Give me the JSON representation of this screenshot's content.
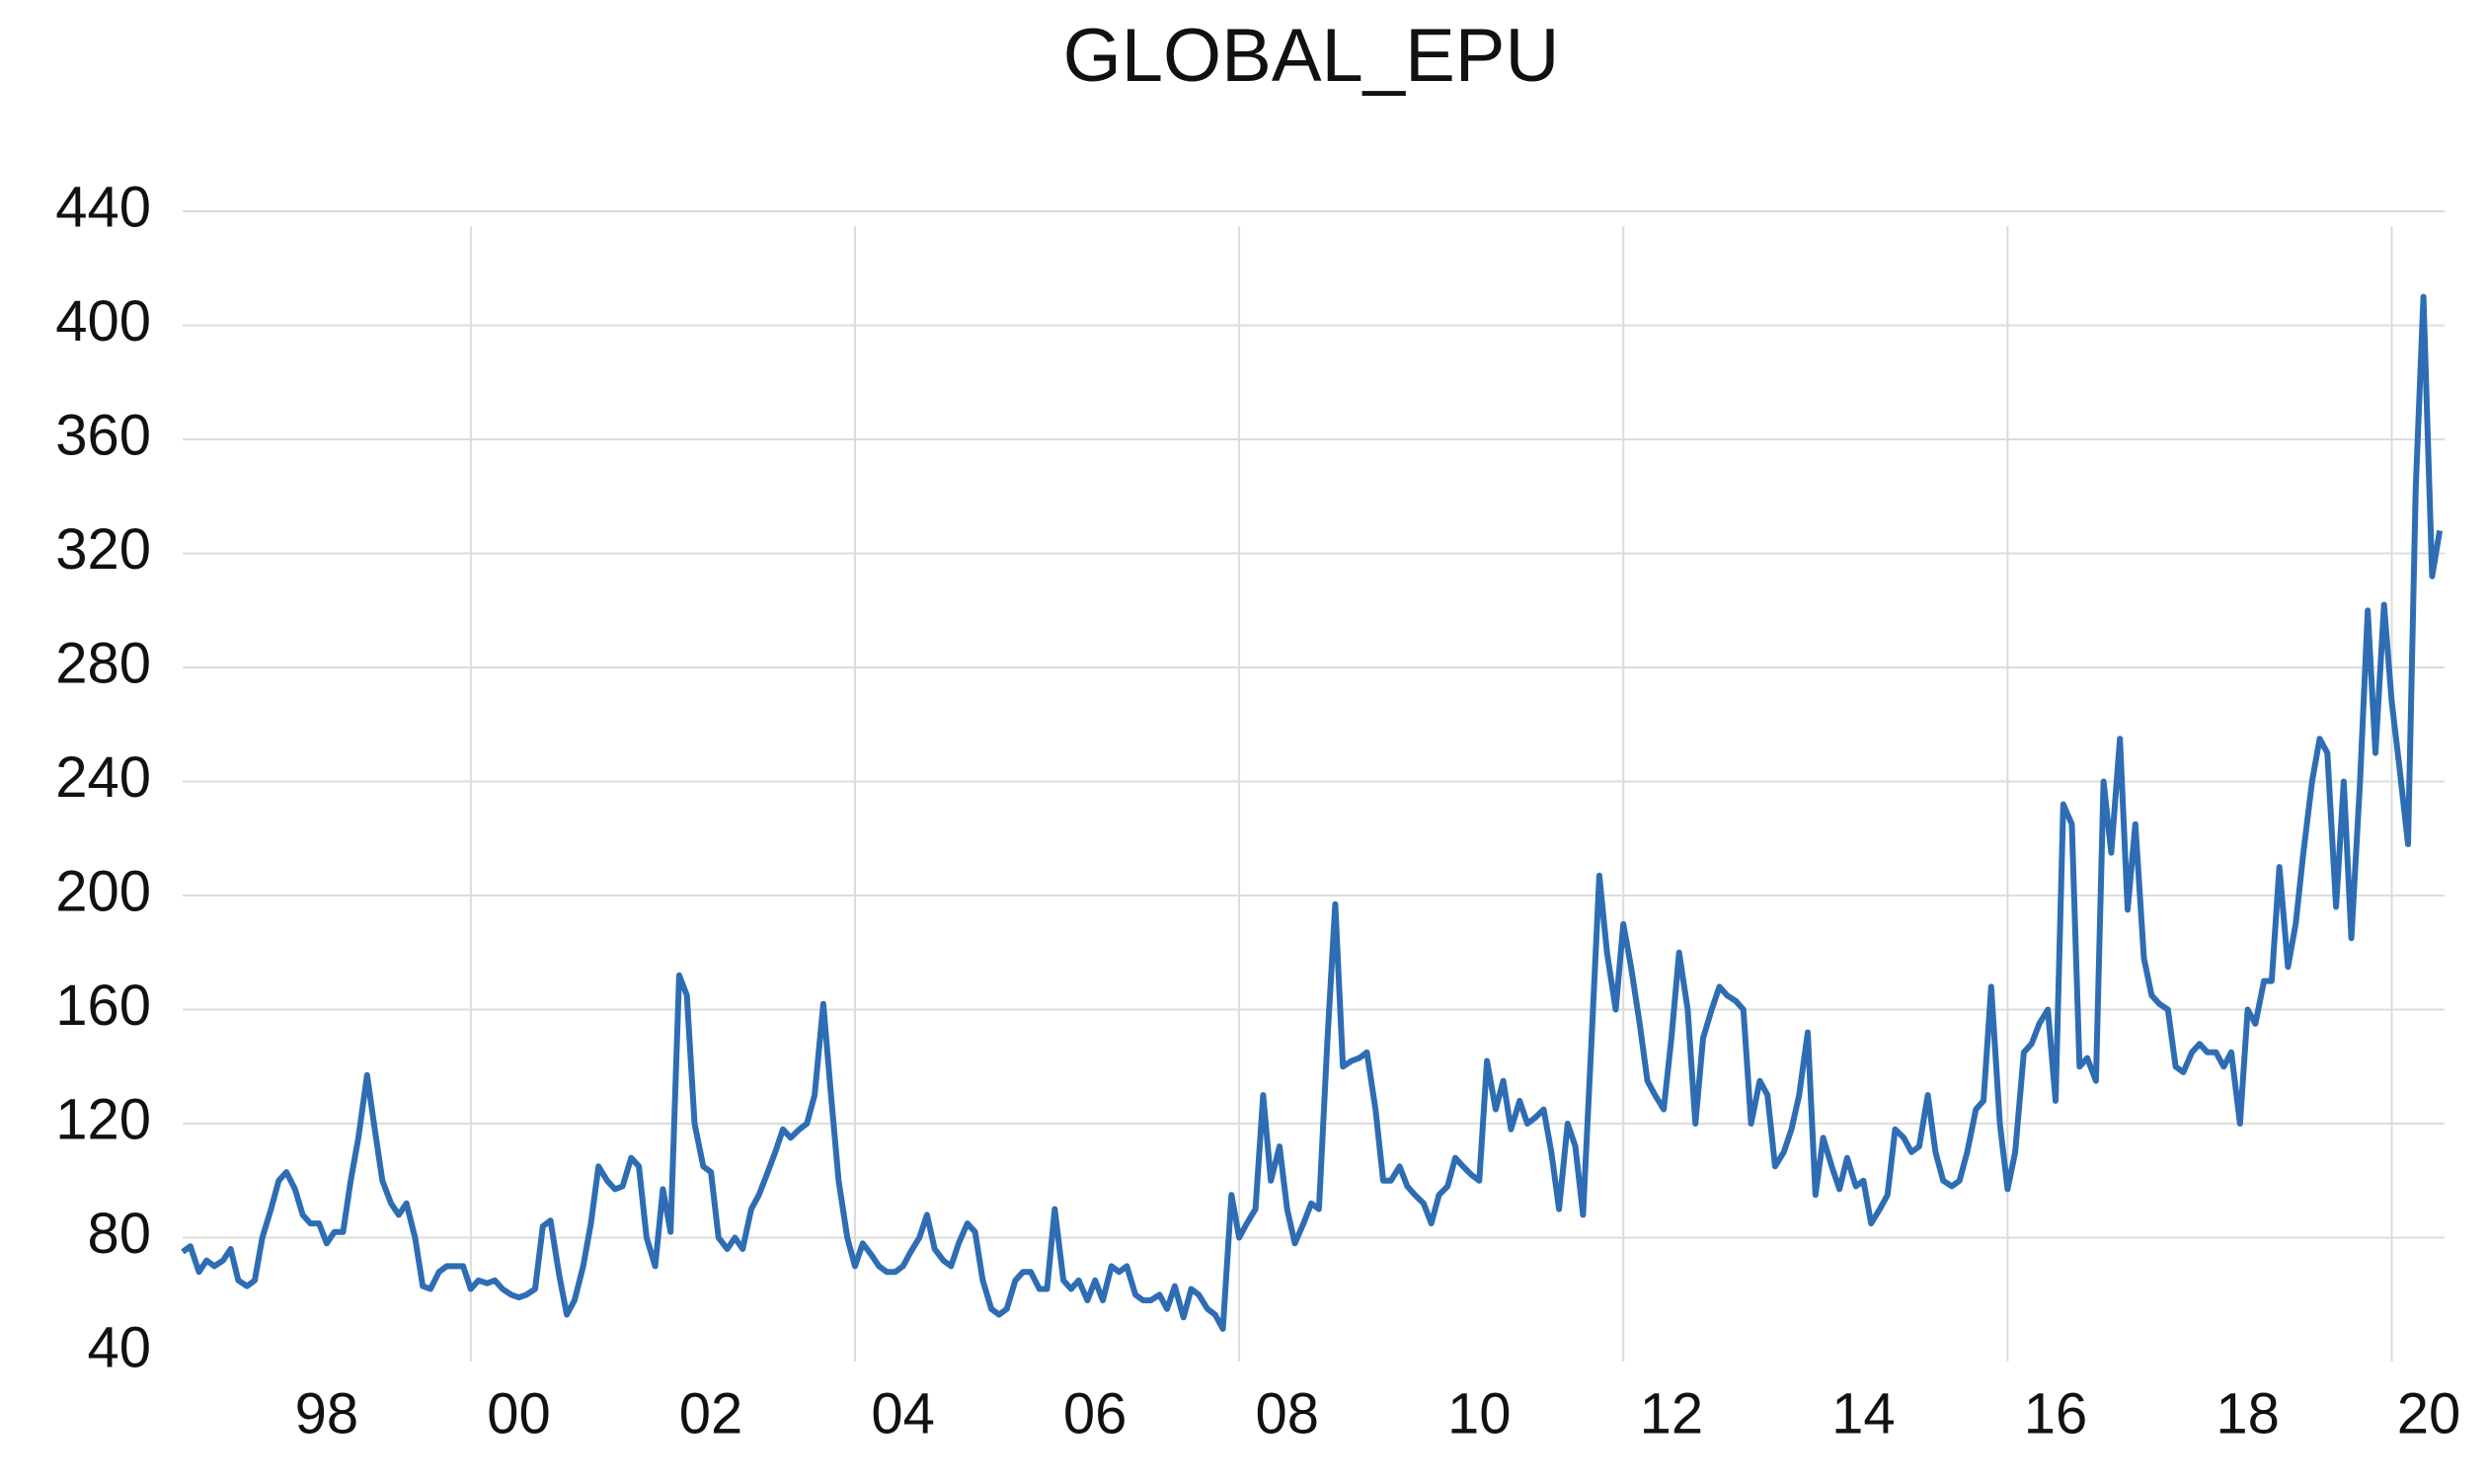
{
  "chart_data": {
    "type": "line",
    "title": "GLOBAL_EPU",
    "xlim": [
      1997,
      2020.55
    ],
    "xticks": [
      {
        "value": 1998.5,
        "label": "98"
      },
      {
        "value": 2000.5,
        "label": "00"
      },
      {
        "value": 2002.5,
        "label": "02"
      },
      {
        "value": 2004.5,
        "label": "04"
      },
      {
        "value": 2006.5,
        "label": "06"
      },
      {
        "value": 2008.5,
        "label": "08"
      },
      {
        "value": 2010.5,
        "label": "10"
      },
      {
        "value": 2012.5,
        "label": "12"
      },
      {
        "value": 2014.5,
        "label": "14"
      },
      {
        "value": 2016.5,
        "label": "16"
      },
      {
        "value": 2018.5,
        "label": "18"
      },
      {
        "value": 2020.5,
        "label": "20"
      }
    ],
    "xgrid": [
      2000,
      2004,
      2008,
      2012,
      2016,
      2020
    ],
    "ylim": [
      40,
      440
    ],
    "yticks": [
      40,
      80,
      120,
      160,
      200,
      240,
      280,
      320,
      360,
      400,
      440
    ],
    "grid": true,
    "series": [
      {
        "color": "#2e6db4",
        "x": [
          1997.0,
          1997.08,
          1997.17,
          1997.25,
          1997.33,
          1997.42,
          1997.5,
          1997.58,
          1997.67,
          1997.75,
          1997.83,
          1997.92,
          1998.0,
          1998.08,
          1998.17,
          1998.25,
          1998.33,
          1998.42,
          1998.5,
          1998.58,
          1998.67,
          1998.75,
          1998.83,
          1998.92,
          1999.0,
          1999.08,
          1999.17,
          1999.25,
          1999.33,
          1999.42,
          1999.5,
          1999.58,
          1999.67,
          1999.75,
          1999.83,
          1999.92,
          2000.0,
          2000.08,
          2000.17,
          2000.25,
          2000.33,
          2000.42,
          2000.5,
          2000.58,
          2000.67,
          2000.75,
          2000.83,
          2000.92,
          2001.0,
          2001.08,
          2001.17,
          2001.25,
          2001.33,
          2001.42,
          2001.5,
          2001.58,
          2001.67,
          2001.75,
          2001.83,
          2001.92,
          2002.0,
          2002.08,
          2002.17,
          2002.25,
          2002.33,
          2002.42,
          2002.5,
          2002.58,
          2002.67,
          2002.75,
          2002.83,
          2002.92,
          2003.0,
          2003.08,
          2003.17,
          2003.25,
          2003.33,
          2003.42,
          2003.5,
          2003.58,
          2003.67,
          2003.75,
          2003.83,
          2003.92,
          2004.0,
          2004.08,
          2004.17,
          2004.25,
          2004.33,
          2004.42,
          2004.5,
          2004.58,
          2004.67,
          2004.75,
          2004.83,
          2004.92,
          2005.0,
          2005.08,
          2005.17,
          2005.25,
          2005.33,
          2005.42,
          2005.5,
          2005.58,
          2005.67,
          2005.75,
          2005.83,
          2005.92,
          2006.0,
          2006.08,
          2006.17,
          2006.25,
          2006.33,
          2006.42,
          2006.5,
          2006.58,
          2006.67,
          2006.75,
          2006.83,
          2006.92,
          2007.0,
          2007.08,
          2007.17,
          2007.25,
          2007.33,
          2007.42,
          2007.5,
          2007.58,
          2007.67,
          2007.75,
          2007.83,
          2007.92,
          2008.0,
          2008.08,
          2008.17,
          2008.25,
          2008.33,
          2008.42,
          2008.5,
          2008.58,
          2008.67,
          2008.75,
          2008.83,
          2008.92,
          2009.0,
          2009.08,
          2009.17,
          2009.25,
          2009.33,
          2009.42,
          2009.5,
          2009.58,
          2009.67,
          2009.75,
          2009.83,
          2009.92,
          2010.0,
          2010.08,
          2010.17,
          2010.25,
          2010.33,
          2010.42,
          2010.5,
          2010.58,
          2010.67,
          2010.75,
          2010.83,
          2010.92,
          2011.0,
          2011.08,
          2011.17,
          2011.25,
          2011.33,
          2011.42,
          2011.5,
          2011.58,
          2011.67,
          2011.75,
          2011.83,
          2011.92,
          2012.0,
          2012.08,
          2012.17,
          2012.25,
          2012.33,
          2012.42,
          2012.5,
          2012.58,
          2012.67,
          2012.75,
          2012.83,
          2012.92,
          2013.0,
          2013.08,
          2013.17,
          2013.25,
          2013.33,
          2013.42,
          2013.5,
          2013.58,
          2013.67,
          2013.75,
          2013.83,
          2013.92,
          2014.0,
          2014.08,
          2014.17,
          2014.25,
          2014.33,
          2014.42,
          2014.5,
          2014.58,
          2014.67,
          2014.75,
          2014.83,
          2014.92,
          2015.0,
          2015.08,
          2015.17,
          2015.25,
          2015.33,
          2015.42,
          2015.5,
          2015.58,
          2015.67,
          2015.75,
          2015.83,
          2015.92,
          2016.0,
          2016.08,
          2016.17,
          2016.25,
          2016.33,
          2016.42,
          2016.5,
          2016.58,
          2016.67,
          2016.75,
          2016.83,
          2016.92,
          2017.0,
          2017.08,
          2017.17,
          2017.25,
          2017.33,
          2017.42,
          2017.5,
          2017.58,
          2017.67,
          2017.75,
          2017.83,
          2017.92,
          2018.0,
          2018.08,
          2018.17,
          2018.25,
          2018.33,
          2018.42,
          2018.5,
          2018.58,
          2018.67,
          2018.75,
          2018.83,
          2018.92,
          2019.0,
          2019.08,
          2019.17,
          2019.25,
          2019.33,
          2019.42,
          2019.5,
          2019.58,
          2019.67,
          2019.75,
          2019.83,
          2019.92,
          2020.0,
          2020.08,
          2020.17,
          2020.25,
          2020.33,
          2020.42,
          2020.5
        ],
        "values": [
          75,
          77,
          68,
          72,
          70,
          72,
          76,
          65,
          63,
          65,
          80,
          90,
          100,
          103,
          97,
          88,
          85,
          85,
          78,
          82,
          82,
          100,
          115,
          137,
          118,
          100,
          92,
          88,
          92,
          80,
          63,
          62,
          68,
          70,
          70,
          70,
          62,
          65,
          64,
          65,
          62,
          60,
          59,
          60,
          62,
          84,
          86,
          67,
          53,
          58,
          70,
          85,
          105,
          100,
          97,
          98,
          108,
          105,
          80,
          70,
          97,
          82,
          172,
          165,
          120,
          105,
          103,
          80,
          76,
          80,
          76,
          90,
          95,
          102,
          110,
          118,
          115,
          118,
          120,
          130,
          162,
          130,
          100,
          80,
          70,
          78,
          74,
          70,
          68,
          68,
          70,
          75,
          80,
          88,
          76,
          72,
          70,
          78,
          85,
          82,
          65,
          55,
          53,
          55,
          65,
          68,
          68,
          62,
          62,
          90,
          65,
          62,
          65,
          58,
          65,
          58,
          70,
          68,
          70,
          60,
          58,
          58,
          60,
          55,
          63,
          52,
          62,
          60,
          55,
          53,
          48,
          95,
          80,
          85,
          90,
          130,
          100,
          112,
          90,
          78,
          85,
          92,
          90,
          150,
          197,
          140,
          142,
          143,
          145,
          125,
          100,
          100,
          105,
          98,
          95,
          92,
          85,
          95,
          98,
          108,
          105,
          102,
          100,
          142,
          125,
          135,
          118,
          128,
          120,
          122,
          125,
          110,
          90,
          120,
          112,
          88,
          150,
          207,
          180,
          160,
          190,
          175,
          155,
          135,
          130,
          125,
          150,
          180,
          160,
          120,
          150,
          160,
          168,
          165,
          163,
          160,
          120,
          135,
          130,
          105,
          110,
          118,
          130,
          152,
          95,
          115,
          105,
          97,
          108,
          98,
          100,
          85,
          90,
          95,
          118,
          115,
          110,
          112,
          130,
          110,
          100,
          98,
          100,
          110,
          125,
          128,
          168,
          120,
          97,
          110,
          145,
          148,
          155,
          160,
          128,
          232,
          225,
          140,
          143,
          135,
          240,
          215,
          255,
          195,
          225,
          178,
          165,
          162,
          160,
          140,
          138,
          145,
          148,
          145,
          145,
          140,
          145,
          120,
          160,
          155,
          170,
          170,
          210,
          175,
          190,
          215,
          240,
          255,
          250,
          196,
          240,
          185,
          240,
          300,
          250,
          302,
          268,
          245,
          218,
          343,
          410,
          312,
          328
        ]
      }
    ]
  }
}
